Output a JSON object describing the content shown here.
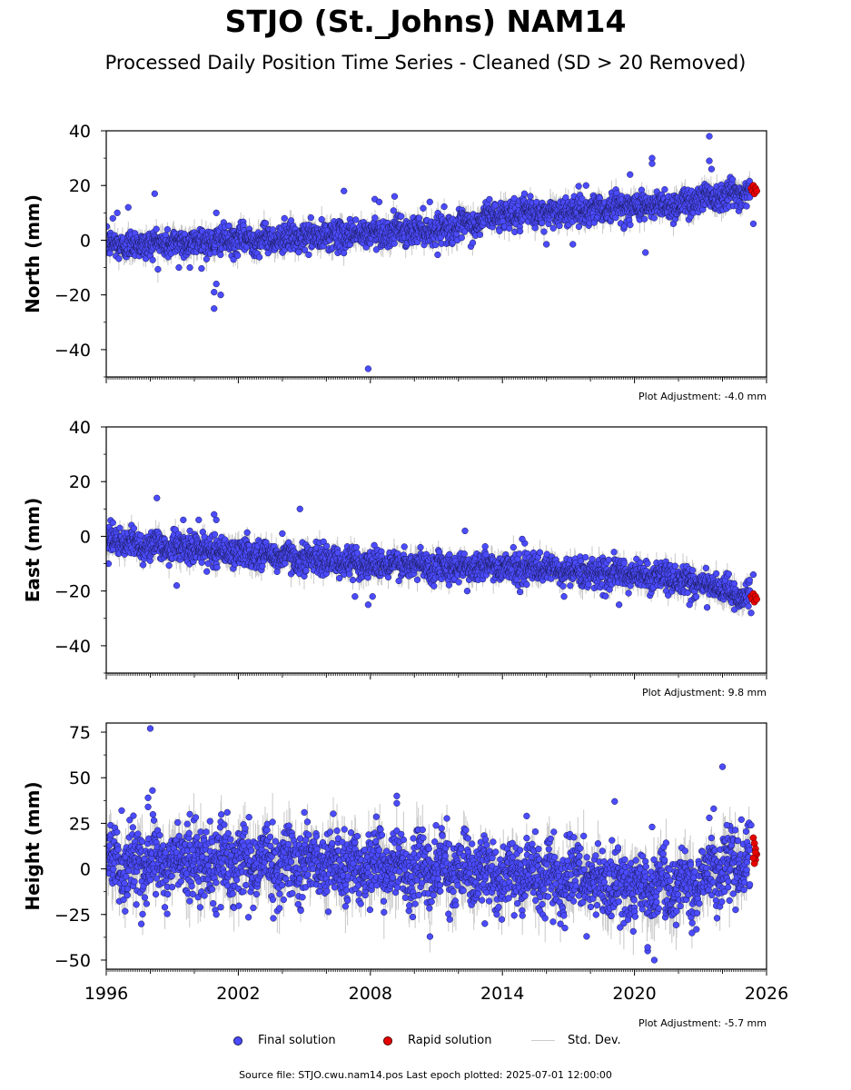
{
  "title": "STJO (St._Johns) NAM14",
  "subtitle": "Processed Daily Position Time Series - Cleaned (SD > 20 Removed)",
  "colors": {
    "final": "#4b4bff",
    "rapid": "#e60000",
    "stddev": "#c8c8c8",
    "edge": "#1a1a55"
  },
  "legend": {
    "final": "Final solution",
    "rapid": "Rapid solution",
    "stddev": "Std. Dev."
  },
  "footer": "Source file: STJO.cwu.nam14.pos  Last epoch plotted: 2025-07-01 12:00:00",
  "chart_data": [
    {
      "type": "scatter",
      "component": "north",
      "ylabel": "North (mm)",
      "ylim": [
        -50,
        40
      ],
      "yticks": [
        40,
        20,
        0,
        -20,
        -40
      ],
      "xlim": [
        1996,
        2026
      ],
      "xticks": [
        1996,
        2002,
        2008,
        2014,
        2020,
        2026
      ],
      "show_xticklabels": false,
      "adjustment": "Plot Adjustment: -4.0 mm",
      "trend": [
        [
          1996.0,
          -2
        ],
        [
          1999.0,
          -1
        ],
        [
          2002.0,
          0
        ],
        [
          2005.0,
          1
        ],
        [
          2008.0,
          2.5
        ],
        [
          2011.0,
          4
        ],
        [
          2013.0,
          6
        ],
        [
          2013.2,
          9
        ],
        [
          2016.0,
          10
        ],
        [
          2019.0,
          12
        ],
        [
          2022.0,
          13
        ],
        [
          2023.3,
          16
        ],
        [
          2025.5,
          18
        ]
      ],
      "spread": 2.5,
      "outliers": [
        [
          1996.3,
          8
        ],
        [
          1996.5,
          10
        ],
        [
          1997.0,
          12
        ],
        [
          1998.2,
          17
        ],
        [
          1999.3,
          -10
        ],
        [
          1999.8,
          -10
        ],
        [
          2000.9,
          -25
        ],
        [
          2000.9,
          -19
        ],
        [
          2001.0,
          -16
        ],
        [
          2001.2,
          -20
        ],
        [
          2001.0,
          10
        ],
        [
          2004.1,
          8
        ],
        [
          2006.8,
          18
        ],
        [
          2007.9,
          -47
        ],
        [
          2008.2,
          15
        ],
        [
          2008.4,
          14
        ],
        [
          2009.1,
          16
        ],
        [
          2010.7,
          14
        ],
        [
          2015.0,
          17
        ],
        [
          2016.0,
          -1.5
        ],
        [
          2017.2,
          -1.5
        ],
        [
          2017.8,
          20
        ],
        [
          2019.8,
          24
        ],
        [
          2020.5,
          -4.5
        ],
        [
          2020.8,
          30
        ],
        [
          2020.8,
          28
        ],
        [
          2023.4,
          38
        ],
        [
          2023.4,
          29
        ],
        [
          2023.5,
          26
        ],
        [
          2025.4,
          6
        ]
      ],
      "rapid": [
        [
          2025.3,
          19
        ],
        [
          2025.35,
          18
        ],
        [
          2025.4,
          20
        ],
        [
          2025.45,
          17
        ],
        [
          2025.5,
          19
        ],
        [
          2025.55,
          18
        ]
      ]
    },
    {
      "type": "scatter",
      "component": "east",
      "ylabel": "East (mm)",
      "ylim": [
        -50,
        40
      ],
      "yticks": [
        40,
        20,
        0,
        -20,
        -40
      ],
      "xlim": [
        1996,
        2026
      ],
      "xticks": [
        1996,
        2002,
        2008,
        2014,
        2020,
        2026
      ],
      "show_xticklabels": false,
      "adjustment": "Plot Adjustment: 9.8 mm",
      "trend": [
        [
          1996.0,
          -2
        ],
        [
          1999.0,
          -4
        ],
        [
          2002.0,
          -6
        ],
        [
          2005.0,
          -8
        ],
        [
          2008.0,
          -10
        ],
        [
          2011.0,
          -11
        ],
        [
          2014.0,
          -11
        ],
        [
          2017.0,
          -13
        ],
        [
          2020.0,
          -14
        ],
        [
          2022.5,
          -16
        ],
        [
          2024.0,
          -20
        ],
        [
          2025.5,
          -23
        ]
      ],
      "spread": 2.5,
      "outliers": [
        [
          1996.1,
          -10
        ],
        [
          1996.3,
          5
        ],
        [
          1998.3,
          14
        ],
        [
          1999.2,
          -18
        ],
        [
          1999.5,
          6
        ],
        [
          1999.8,
          2
        ],
        [
          2000.2,
          6
        ],
        [
          2000.9,
          8
        ],
        [
          2001.0,
          6
        ],
        [
          2004.0,
          1
        ],
        [
          2004.8,
          10
        ],
        [
          2007.3,
          -22
        ],
        [
          2007.9,
          -25
        ],
        [
          2008.1,
          -22
        ],
        [
          2012.3,
          2
        ],
        [
          2012.4,
          -20
        ],
        [
          2014.9,
          -1
        ],
        [
          2016.8,
          -22
        ],
        [
          2019.3,
          -25
        ],
        [
          2022.5,
          -25
        ],
        [
          2023.3,
          -26
        ],
        [
          2025.3,
          -28
        ],
        [
          2025.4,
          -14
        ],
        [
          2025.4,
          -21
        ]
      ],
      "rapid": [
        [
          2025.3,
          -22
        ],
        [
          2025.35,
          -23
        ],
        [
          2025.4,
          -21
        ],
        [
          2025.45,
          -24
        ],
        [
          2025.5,
          -22
        ],
        [
          2025.55,
          -23
        ]
      ]
    },
    {
      "type": "scatter",
      "component": "height",
      "ylabel": "Height (mm)",
      "ylim": [
        -55,
        80
      ],
      "yticks": [
        75,
        50,
        25,
        0,
        -25,
        -50
      ],
      "xlim": [
        1996,
        2026
      ],
      "xticks": [
        1996,
        2002,
        2008,
        2014,
        2020,
        2026
      ],
      "xticklabels": [
        "1996",
        "2002",
        "2008",
        "2014",
        "2020",
        "2026"
      ],
      "show_xticklabels": true,
      "adjustment": "Plot Adjustment: -5.7 mm",
      "trend": [
        [
          1996.0,
          3
        ],
        [
          2000.0,
          4
        ],
        [
          2004.0,
          4
        ],
        [
          2008.0,
          2
        ],
        [
          2011.0,
          0
        ],
        [
          2014.0,
          -3
        ],
        [
          2017.0,
          -6
        ],
        [
          2019.0,
          -8
        ],
        [
          2020.5,
          -10
        ],
        [
          2022.0,
          -9
        ],
        [
          2023.0,
          -8
        ],
        [
          2023.5,
          0
        ],
        [
          2025.5,
          5
        ]
      ],
      "spread": 9,
      "outliers": [
        [
          1996.7,
          32
        ],
        [
          1998.0,
          77
        ],
        [
          1998.1,
          43
        ],
        [
          1997.9,
          39
        ],
        [
          1997.9,
          34
        ],
        [
          1999.8,
          30
        ],
        [
          2001.5,
          31
        ],
        [
          2005.0,
          31
        ],
        [
          2009.2,
          40
        ],
        [
          2009.2,
          36
        ],
        [
          2015.1,
          29
        ],
        [
          2019.1,
          37
        ],
        [
          2020.8,
          23
        ],
        [
          2020.6,
          -45
        ],
        [
          2020.6,
          -43
        ],
        [
          2020.9,
          -50
        ],
        [
          2023.4,
          28
        ],
        [
          2023.6,
          33
        ],
        [
          2024.0,
          56
        ],
        [
          2024.2,
          24
        ],
        [
          2025.3,
          24
        ],
        [
          2013.2,
          -30
        ],
        [
          2016.3,
          -29
        ],
        [
          2001.0,
          -25
        ],
        [
          2001.2,
          -21
        ]
      ],
      "rapid": [
        [
          2025.4,
          17
        ],
        [
          2025.45,
          14
        ],
        [
          2025.5,
          11
        ],
        [
          2025.55,
          8
        ],
        [
          2025.5,
          5
        ],
        [
          2025.45,
          3
        ],
        [
          2025.4,
          6
        ],
        [
          2025.5,
          9
        ]
      ]
    }
  ]
}
